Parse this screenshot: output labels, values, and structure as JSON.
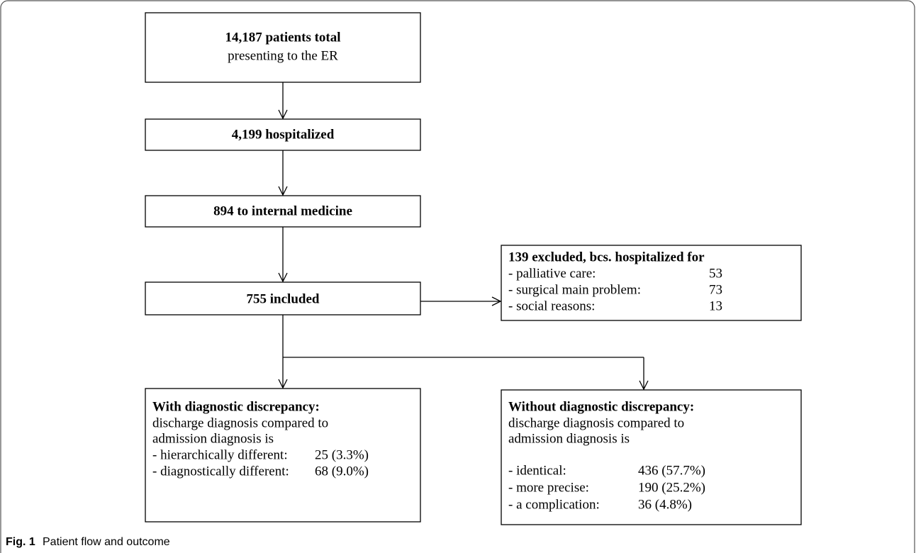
{
  "nodes": [
    {
      "title": "14,187 patients total",
      "text": "presenting to the ER"
    },
    {
      "title": "4,199 hospitalized"
    },
    {
      "title": "894 to internal medicine"
    },
    {
      "title": "755 included"
    },
    {
      "title": "139 excluded, bcs. hospitalized for",
      "items": [
        {
          "label": "- palliative care:",
          "value": "53"
        },
        {
          "label": "- surgical main problem:",
          "value": "73"
        },
        {
          "label": "- social reasons:",
          "value": "13"
        }
      ]
    },
    {
      "title": "With diagnostic discrepancy:",
      "lines": [
        "discharge diagnosis compared to",
        "admission diagnosis is"
      ],
      "items": [
        {
          "label": "- hierarchically different:",
          "value": "25 (3.3%)"
        },
        {
          "label": "- diagnostically different:",
          "value": "68 (9.0%)"
        }
      ]
    },
    {
      "title": "Without diagnostic discrepancy:",
      "lines": [
        "discharge diagnosis compared to",
        "admission diagnosis is"
      ],
      "items": [
        {
          "label": "- identical:",
          "value": "436 (57.7%)"
        },
        {
          "label": "- more precise:",
          "value": "190 (25.2%)"
        },
        {
          "label": "- a complication:",
          "value": "36 (4.8%)"
        }
      ]
    }
  ],
  "caption": {
    "label": "Fig. 1",
    "text": "Patient flow and outcome"
  }
}
